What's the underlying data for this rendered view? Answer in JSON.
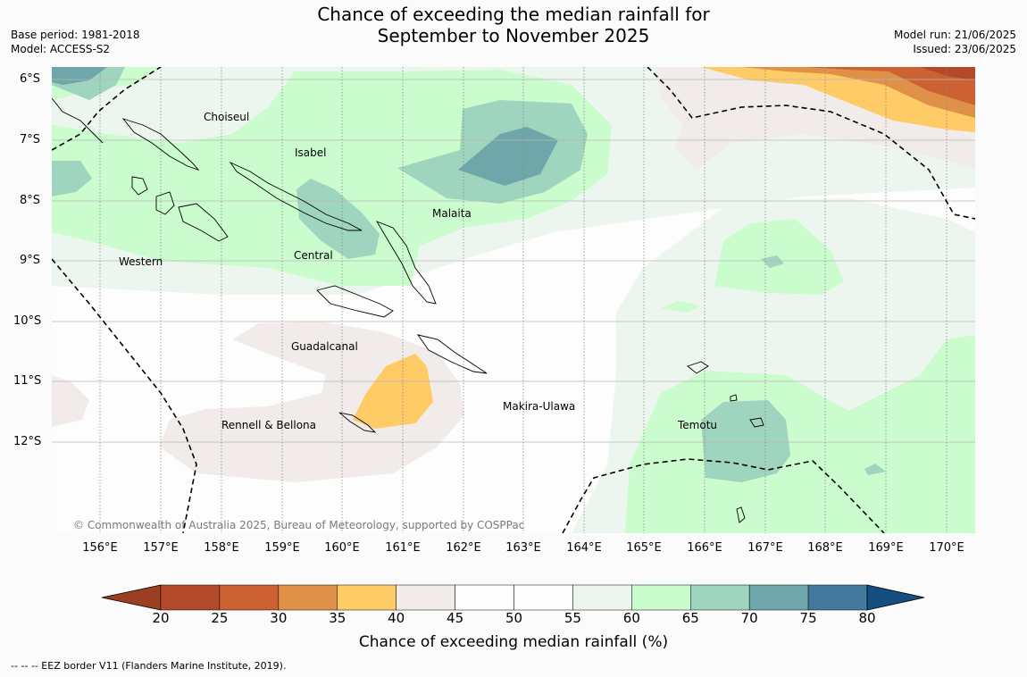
{
  "title": {
    "line1": "Chance of exceeding the median rainfall for",
    "line2": "September to November 2025"
  },
  "meta_left": {
    "base_period": "Base period: 1981-2018",
    "model": "Model: ACCESS-S2"
  },
  "meta_right": {
    "model_run": "Model run: 21/06/2025",
    "issued": "Issued: 23/06/2025"
  },
  "map": {
    "latitude_labels": [
      "6°S",
      "7°S",
      "8°S",
      "9°S",
      "10°S",
      "11°S",
      "12°S"
    ],
    "longitude_labels": [
      "156°E",
      "157°E",
      "158°E",
      "159°E",
      "160°E",
      "161°E",
      "162°E",
      "163°E",
      "164°E",
      "165°E",
      "166°E",
      "167°E",
      "168°E",
      "169°E",
      "170°E"
    ],
    "province_labels": {
      "choiseul": "Choiseul",
      "isabel": "Isabel",
      "malaita": "Malaita",
      "western": "Western",
      "central": "Central",
      "guadalcanal": "Guadalcanal",
      "makira_ulawa": "Makira-Ulawa",
      "rennell_bellona": "Rennell & Bellona",
      "temotu": "Temotu"
    },
    "copyright": "© Commonwealth of Australia 2025, Bureau of Meteorology, supported by COSPPac"
  },
  "colorbar": {
    "ticks": [
      "20",
      "25",
      "30",
      "35",
      "40",
      "45",
      "50",
      "55",
      "60",
      "65",
      "70",
      "75",
      "80"
    ],
    "colors": [
      "#b24a2a",
      "#cc6231",
      "#e09148",
      "#fecb67",
      "#f1ece9",
      "#fcfdfc",
      "#fcfdfc",
      "#edf6ee",
      "#cbfccd",
      "#9fd4be",
      "#6ea6a9",
      "#43799c"
    ],
    "under_color": "#9c3e22",
    "over_color": "#154f81",
    "label": "Chance of exceeding median rainfall (%)"
  },
  "footnote": "--  --  -- EEZ border V11 (Flanders Marine Institute, 2019)."
}
